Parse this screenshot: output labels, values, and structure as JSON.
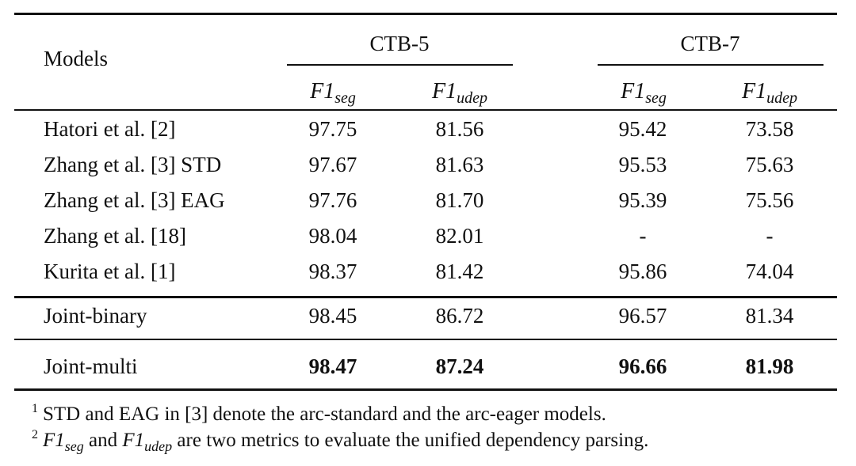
{
  "table": {
    "models_header": "Models",
    "groups": [
      "CTB-5",
      "CTB-7"
    ],
    "metrics": [
      {
        "base": "F1",
        "sub": "seg"
      },
      {
        "base": "F1",
        "sub": "udep"
      },
      {
        "base": "F1",
        "sub": "seg"
      },
      {
        "base": "F1",
        "sub": "udep"
      }
    ],
    "rows": [
      {
        "model": "Hatori et al. [2]",
        "values": [
          "97.75",
          "81.56",
          "95.42",
          "73.58"
        ]
      },
      {
        "model": "Zhang et al. [3] STD",
        "values": [
          "97.67",
          "81.63",
          "95.53",
          "75.63"
        ]
      },
      {
        "model": "Zhang et al. [3] EAG",
        "values": [
          "97.76",
          "81.70",
          "95.39",
          "75.56"
        ]
      },
      {
        "model": "Zhang et al. [18]",
        "values": [
          "98.04",
          "82.01",
          "-",
          "-"
        ]
      },
      {
        "model": "Kurita et al. [1]",
        "values": [
          "98.37",
          "81.42",
          "95.86",
          "74.04"
        ]
      },
      {
        "model": "Joint-binary",
        "values": [
          "98.45",
          "86.72",
          "96.57",
          "81.34"
        ]
      },
      {
        "model": "Joint-multi",
        "values": [
          "98.47",
          "87.24",
          "96.66",
          "81.98"
        ],
        "bold": true
      }
    ]
  },
  "footnotes": [
    {
      "mark": "1",
      "text": "STD and EAG in  [3] denote the arc-standard and the arc-eager models."
    },
    {
      "mark": "2",
      "m1_base": "F1",
      "m1_sub": "seg",
      "mid": " and ",
      "m2_base": "F1",
      "m2_sub": "udep",
      "text": " are two metrics to evaluate the unified dependency parsing."
    }
  ]
}
